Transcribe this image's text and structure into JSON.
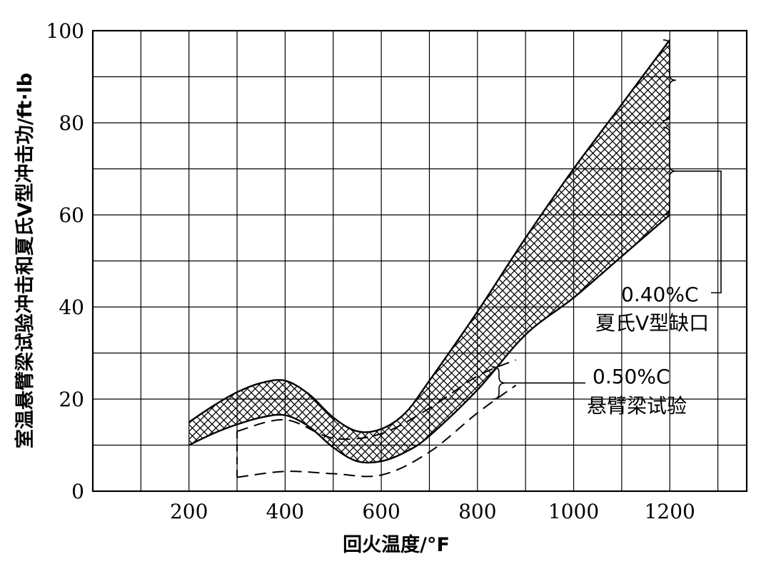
{
  "chart_data": {
    "type": "area",
    "xlabel": "回火温度/°F",
    "ylabel": "室温悬臂梁试验冲击和夏氏V型冲击功/ft·lb",
    "xlim": [
      0,
      1360
    ],
    "ylim": [
      0,
      100
    ],
    "xticks": [
      200,
      400,
      600,
      800,
      1000,
      1200
    ],
    "yticks": [
      0,
      20,
      40,
      60,
      80,
      100
    ],
    "grid": true,
    "series": [
      {
        "name": "0.40%C 夏氏V型缺口",
        "style": "cross-hatched band",
        "x": [
          200,
          250,
          300,
          350,
          400,
          450,
          500,
          550,
          600,
          650,
          700,
          800,
          900,
          1000,
          1100,
          1200
        ],
        "upper": [
          15,
          18.5,
          21.5,
          23.5,
          24,
          21,
          16,
          13,
          13.5,
          17,
          24,
          39,
          55,
          70,
          84,
          98
        ],
        "lower": [
          10,
          12.5,
          14.5,
          16,
          16.5,
          14,
          9.5,
          6.5,
          6.5,
          8.5,
          12,
          22,
          34,
          42,
          51,
          60
        ]
      },
      {
        "name": "0.50%C 悬臂梁试验",
        "style": "dashed band",
        "x": [
          300,
          400,
          500,
          600,
          700,
          800,
          880
        ],
        "upper": [
          13,
          15.5,
          11.5,
          12.5,
          18,
          25,
          28.5
        ],
        "lower": [
          3,
          4.3,
          3.8,
          3.5,
          8.5,
          17,
          23
        ]
      }
    ],
    "annotations": [
      {
        "line1": "0.40%C",
        "line2": "夏氏V型缺口"
      },
      {
        "line1": "0.50%C",
        "line2": "悬臂梁试验"
      }
    ]
  }
}
